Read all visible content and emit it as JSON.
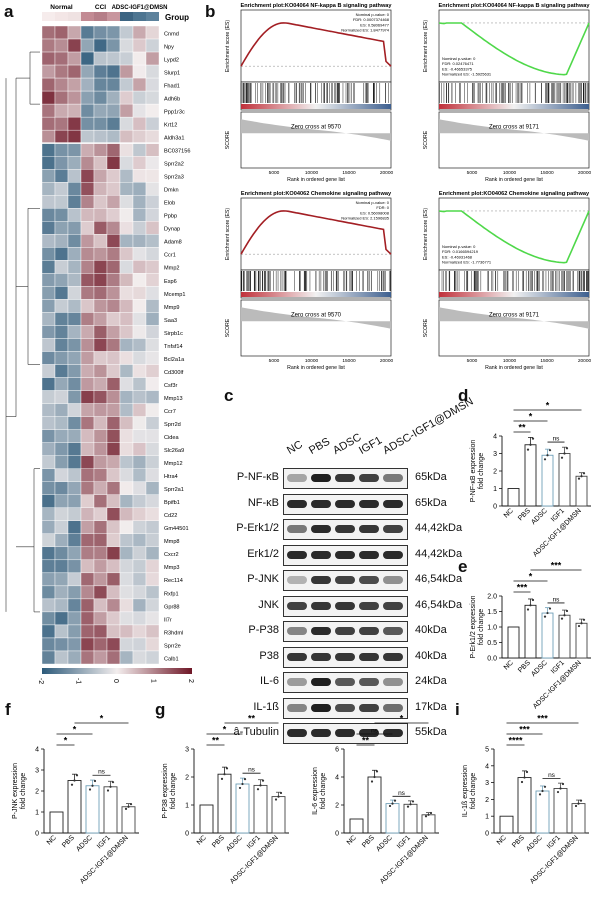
{
  "panels": {
    "a": "a",
    "b": "b",
    "c": "c",
    "d": "d",
    "e": "e",
    "f": "f",
    "g": "g",
    "h": "h",
    "i": "i"
  },
  "heatmap": {
    "group_label": "Group",
    "groups": [
      "Normal",
      "CCI",
      "ADSC-IGF1@DMSN"
    ],
    "genes": [
      "Cnmd",
      "Npy",
      "Lypd2",
      "Slurp1",
      "Fhad1",
      "Adh6b",
      "Ppp1r3c",
      "Krt12",
      "Aldh3a1",
      "BC037156",
      "Sprr2a2",
      "Sprr2a3",
      "Dmkn",
      "Elob",
      "Ppbp",
      "Dynap",
      "Adam8",
      "Ccr1",
      "Mmp2",
      "Esp6",
      "Mcemp1",
      "Mmp9",
      "Saa3",
      "Sirpb1c",
      "Tnfsf14",
      "Bcl2a1a",
      "Cd300lf",
      "Csf3r",
      "Mmp13",
      "Ccr7",
      "Sprr2d",
      "Cidea",
      "Slc26a9",
      "Mmp12",
      "Htra4",
      "Sprr2a1",
      "Bpifb1",
      "Cd22",
      "Gm44501",
      "Mmp8",
      "Cxcr2",
      "Mmp3",
      "Rec114",
      "Rxfp1",
      "Gpr88",
      "Il7r",
      "R3hdml",
      "Sprr2e",
      "Calb1"
    ],
    "legend_ticks": [
      "-2",
      "-1",
      "0",
      "1",
      "2"
    ],
    "colors": {
      "low": "#2c5a7a",
      "mid": "#f3eeee",
      "high": "#6e1626"
    }
  },
  "gsea": [
    {
      "title": "Enrichment plot:KO04064 NF-kappa B signaling pathway",
      "stats": [
        "Nominal p-value: 0",
        "FDR: 0.0007374468",
        "ES: 0.58069477",
        "Normalized ES: 1.8477974"
      ],
      "zero_cross": "Zero cross at 9570",
      "color": "#a31f24"
    },
    {
      "title": "Enrichment plot:KO04064 NF-kappa B signaling pathway",
      "stats": [
        "Nominal p-value: 0",
        "FDR: 0.02476471",
        "ES: -0.46653375",
        "Normalized ES: -1.5925631"
      ],
      "zero_cross": "Zero cross at 9171",
      "color": "#4fd84a"
    },
    {
      "title": "Enrichment plot:KO04062 Chemokine signaling pathway",
      "stats": [
        "Nominal p-value: 0",
        "FDR: 0",
        "ES: 0.56098008",
        "Normalized ES: 2.1596835"
      ],
      "zero_cross": "Zero cross at 9570",
      "color": "#a31f24"
    },
    {
      "title": "Enrichment plot:KO04062 Chemokine signaling pathway",
      "stats": [
        "Nominal p-value: 0",
        "FDR: 0.0166594219",
        "ES: -0.46931468",
        "Normalized ES: -1.7736771"
      ],
      "zero_cross": "Zero cross at 9171",
      "color": "#4fd84a"
    }
  ],
  "gsea_axes": {
    "y_es": "Enrichment score (ES)",
    "y_score": "SCORE",
    "x": "Rank in ordered gene list",
    "x_ticks": [
      "5000",
      "10000",
      "15000",
      "20000"
    ]
  },
  "western": {
    "columns": [
      "NC",
      "PBS",
      "ADSC",
      "IGF1",
      "ADSC-IGF1@DMSN"
    ],
    "rows": [
      {
        "label": "P-NF-κB",
        "kda": "65kDa",
        "intensity": [
          0.35,
          0.95,
          0.85,
          0.8,
          0.55
        ]
      },
      {
        "label": "NF-κB",
        "kda": "65kDa",
        "intensity": [
          0.9,
          0.9,
          0.9,
          0.9,
          0.9
        ]
      },
      {
        "label": "P-Erk1/2",
        "kda": "44,42kDa",
        "intensity": [
          0.55,
          0.9,
          0.85,
          0.85,
          0.8
        ]
      },
      {
        "label": "Erk1/2",
        "kda": "44,42kDa",
        "intensity": [
          0.9,
          0.9,
          0.9,
          0.9,
          0.9
        ]
      },
      {
        "label": "P-JNK",
        "kda": "46,54kDa",
        "intensity": [
          0.3,
          0.85,
          0.8,
          0.75,
          0.45
        ]
      },
      {
        "label": "JNK",
        "kda": "46,54kDa",
        "intensity": [
          0.8,
          0.85,
          0.85,
          0.8,
          0.8
        ]
      },
      {
        "label": "P-P38",
        "kda": "40kDa",
        "intensity": [
          0.5,
          0.9,
          0.8,
          0.8,
          0.7
        ]
      },
      {
        "label": "P38",
        "kda": "40kDa",
        "intensity": [
          0.85,
          0.85,
          0.85,
          0.85,
          0.85
        ]
      },
      {
        "label": "IL-6",
        "kda": "24kDa",
        "intensity": [
          0.4,
          0.95,
          0.7,
          0.7,
          0.45
        ]
      },
      {
        "label": "IL-1ß",
        "kda": "17kDa",
        "intensity": [
          0.5,
          0.95,
          0.75,
          0.8,
          0.6
        ]
      },
      {
        "label": "â-Tubulin",
        "kda": "55kDa",
        "intensity": [
          0.9,
          0.9,
          0.9,
          0.9,
          0.9
        ]
      }
    ]
  },
  "chart_data": [
    {
      "type": "bar",
      "panel": "d",
      "ylabel": "P-NF-κB expression fold change",
      "categories": [
        "NC",
        "PBS",
        "ADSC",
        "IGF1",
        "ADSC-IGF1@DMSN"
      ],
      "values": [
        1.0,
        3.5,
        2.9,
        3.0,
        1.7
      ],
      "ylim": [
        0,
        4
      ],
      "yticks": [
        "0",
        "1",
        "2",
        "3",
        "4"
      ],
      "sig": [
        {
          "from": 0,
          "to": 1,
          "label": "**"
        },
        {
          "from": 2,
          "to": 3,
          "label": "ns"
        },
        {
          "from": 0,
          "to": 2,
          "label": "*"
        },
        {
          "from": 0,
          "to": 4,
          "label": "*"
        }
      ]
    },
    {
      "type": "bar",
      "panel": "e",
      "ylabel": "P-Erk1/2 expression fold change",
      "categories": [
        "NC",
        "PBS",
        "ADSC",
        "IGF1",
        "ADSC-IGF1@DMSN"
      ],
      "values": [
        1.0,
        1.7,
        1.45,
        1.38,
        1.12
      ],
      "ylim": [
        0,
        2.0
      ],
      "yticks": [
        "0.0",
        "0.5",
        "1.0",
        "1.5",
        "2.0"
      ],
      "sig": [
        {
          "from": 0,
          "to": 1,
          "label": "***"
        },
        {
          "from": 2,
          "to": 3,
          "label": "ns"
        },
        {
          "from": 0,
          "to": 2,
          "label": "*"
        },
        {
          "from": 1,
          "to": 4,
          "label": "***"
        }
      ]
    },
    {
      "type": "bar",
      "panel": "f",
      "ylabel": "P-JNK expression fold change",
      "categories": [
        "NC",
        "PBS",
        "ADSC",
        "IGF1",
        "ADSC-IGF1@DMSN"
      ],
      "values": [
        1.0,
        2.5,
        2.25,
        2.2,
        1.25
      ],
      "ylim": [
        0,
        4
      ],
      "yticks": [
        "0",
        "1",
        "2",
        "3",
        "4"
      ],
      "sig": [
        {
          "from": 0,
          "to": 1,
          "label": "*"
        },
        {
          "from": 2,
          "to": 3,
          "label": "ns"
        },
        {
          "from": 0,
          "to": 2,
          "label": "*"
        },
        {
          "from": 1,
          "to": 4,
          "label": "*"
        }
      ]
    },
    {
      "type": "bar",
      "panel": "g",
      "ylabel": "P-P38 expression fold change",
      "categories": [
        "NC",
        "PBS",
        "ADSC",
        "IGF1",
        "ADSC-IGF1@DMSN"
      ],
      "values": [
        1.0,
        2.1,
        1.75,
        1.7,
        1.3
      ],
      "ylim": [
        0,
        3
      ],
      "yticks": [
        "0",
        "1",
        "2",
        "3"
      ],
      "sig": [
        {
          "from": 0,
          "to": 1,
          "label": "**"
        },
        {
          "from": 2,
          "to": 3,
          "label": "ns"
        },
        {
          "from": 0,
          "to": 2,
          "label": "*"
        },
        {
          "from": 1,
          "to": 4,
          "label": "**"
        }
      ]
    },
    {
      "type": "bar",
      "panel": "h",
      "ylabel": "IL-6 expression fold change",
      "categories": [
        "NC",
        "PBS",
        "ADSC",
        "IGF1",
        "ADSC-IGF1@DMSN"
      ],
      "values": [
        1.0,
        4.0,
        2.1,
        2.05,
        1.3
      ],
      "ylim": [
        0,
        6
      ],
      "yticks": [
        "0",
        "2",
        "4",
        "6"
      ],
      "sig": [
        {
          "from": 0,
          "to": 1,
          "label": "**"
        },
        {
          "from": 2,
          "to": 3,
          "label": "ns"
        },
        {
          "from": 0,
          "to": 2,
          "label": "ns"
        },
        {
          "from": 1,
          "to": 4,
          "label": "*"
        }
      ]
    },
    {
      "type": "bar",
      "panel": "i",
      "ylabel": "IL-1ß expression fold change",
      "categories": [
        "NC",
        "PBS",
        "ADSC",
        "IGF1",
        "ADSC-IGF1@DMSN"
      ],
      "values": [
        1.0,
        3.3,
        2.5,
        2.65,
        1.75
      ],
      "ylim": [
        0,
        5
      ],
      "yticks": [
        "0",
        "1",
        "2",
        "3",
        "4",
        "5"
      ],
      "sig": [
        {
          "from": 0,
          "to": 1,
          "label": "****"
        },
        {
          "from": 2,
          "to": 3,
          "label": "ns"
        },
        {
          "from": 0,
          "to": 2,
          "label": "***"
        },
        {
          "from": 0,
          "to": 4,
          "label": "***"
        }
      ]
    }
  ]
}
